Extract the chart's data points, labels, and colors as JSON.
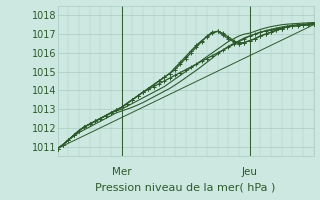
{
  "xlabel": "Pression niveau de la mer( hPa )",
  "bg_color": "#cce8e0",
  "grid_color": "#aaccc4",
  "line_color": "#2d5a2d",
  "ylim": [
    1010.5,
    1018.5
  ],
  "xlim": [
    0,
    96
  ],
  "yticks": [
    1011,
    1012,
    1013,
    1014,
    1015,
    1016,
    1017,
    1018
  ],
  "day_labels": [
    [
      24,
      "Mer"
    ],
    [
      72,
      "Jeu"
    ]
  ],
  "series": [
    {
      "x": [
        0,
        2,
        4,
        6,
        8,
        10,
        12,
        14,
        16,
        18,
        20,
        22,
        24,
        26,
        28,
        30,
        32,
        34,
        36,
        38,
        40,
        42,
        44,
        46,
        48,
        50,
        52,
        54,
        56,
        58,
        60,
        62,
        64,
        66,
        68,
        70,
        72,
        74,
        76,
        78,
        80,
        82,
        84,
        86,
        88,
        90,
        92,
        94,
        96
      ],
      "y": [
        1010.9,
        1011.1,
        1011.35,
        1011.6,
        1011.85,
        1012.05,
        1012.2,
        1012.35,
        1012.5,
        1012.65,
        1012.8,
        1012.95,
        1013.1,
        1013.3,
        1013.5,
        1013.7,
        1013.9,
        1014.05,
        1014.2,
        1014.35,
        1014.5,
        1014.65,
        1014.8,
        1014.95,
        1015.1,
        1015.25,
        1015.4,
        1015.55,
        1015.7,
        1015.85,
        1016.0,
        1016.15,
        1016.3,
        1016.45,
        1016.6,
        1016.75,
        1016.9,
        1017.0,
        1017.1,
        1017.17,
        1017.22,
        1017.28,
        1017.33,
        1017.38,
        1017.42,
        1017.45,
        1017.48,
        1017.5,
        1017.52
      ],
      "marker": true,
      "lw": 0.9
    },
    {
      "x": [
        0,
        2,
        4,
        6,
        8,
        10,
        12,
        14,
        16,
        18,
        20,
        22,
        24,
        26,
        28,
        30,
        32,
        34,
        36,
        38,
        40,
        42,
        44,
        46,
        48,
        50,
        52,
        54,
        56,
        58,
        60,
        62,
        64,
        66,
        68,
        70,
        72,
        74,
        76,
        78,
        80,
        82,
        84,
        86,
        88,
        90,
        92,
        94,
        96
      ],
      "y": [
        1010.9,
        1011.1,
        1011.35,
        1011.6,
        1011.85,
        1012.05,
        1012.2,
        1012.35,
        1012.5,
        1012.65,
        1012.8,
        1012.95,
        1013.1,
        1013.3,
        1013.5,
        1013.7,
        1013.9,
        1014.1,
        1014.3,
        1014.5,
        1014.7,
        1014.9,
        1015.1,
        1015.4,
        1015.7,
        1016.0,
        1016.3,
        1016.6,
        1016.9,
        1017.1,
        1017.15,
        1016.95,
        1016.75,
        1016.6,
        1016.5,
        1016.55,
        1016.65,
        1016.75,
        1016.9,
        1017.0,
        1017.1,
        1017.2,
        1017.3,
        1017.38,
        1017.43,
        1017.47,
        1017.5,
        1017.52,
        1017.54
      ],
      "marker": true,
      "lw": 0.9
    },
    {
      "x": [
        0,
        2,
        4,
        6,
        8,
        10,
        12,
        14,
        16,
        18,
        20,
        22,
        24,
        26,
        28,
        30,
        32,
        34,
        36,
        38,
        40,
        42,
        44,
        46,
        48,
        50,
        52,
        54,
        56,
        58,
        60,
        62,
        64,
        66,
        68,
        70,
        72,
        74,
        76,
        78,
        80,
        82,
        84,
        86,
        88,
        90,
        92,
        94,
        96
      ],
      "y": [
        1010.9,
        1011.1,
        1011.35,
        1011.6,
        1011.85,
        1012.05,
        1012.2,
        1012.35,
        1012.5,
        1012.65,
        1012.8,
        1012.95,
        1013.1,
        1013.3,
        1013.5,
        1013.7,
        1013.9,
        1014.1,
        1014.3,
        1014.5,
        1014.7,
        1014.9,
        1015.2,
        1015.5,
        1015.8,
        1016.1,
        1016.4,
        1016.65,
        1016.85,
        1017.05,
        1017.15,
        1017.05,
        1016.85,
        1016.65,
        1016.5,
        1016.55,
        1016.65,
        1016.75,
        1016.9,
        1017.0,
        1017.1,
        1017.2,
        1017.3,
        1017.38,
        1017.43,
        1017.47,
        1017.5,
        1017.52,
        1017.54
      ],
      "marker": true,
      "lw": 0.9
    },
    {
      "x": [
        0,
        2,
        4,
        6,
        8,
        10,
        12,
        14,
        16,
        18,
        20,
        22,
        24,
        26,
        28,
        30,
        32,
        34,
        36,
        38,
        40,
        42,
        44,
        46,
        48,
        50,
        52,
        54,
        56,
        58,
        60,
        62,
        64,
        66,
        68,
        70,
        72,
        74,
        76,
        78,
        80,
        82,
        84,
        86,
        88,
        90,
        92,
        94,
        96
      ],
      "y": [
        1010.9,
        1011.1,
        1011.35,
        1011.6,
        1011.85,
        1012.05,
        1012.2,
        1012.35,
        1012.5,
        1012.65,
        1012.8,
        1012.9,
        1013.0,
        1013.15,
        1013.3,
        1013.45,
        1013.6,
        1013.75,
        1013.9,
        1014.05,
        1014.2,
        1014.4,
        1014.6,
        1014.8,
        1015.0,
        1015.2,
        1015.4,
        1015.6,
        1015.8,
        1016.0,
        1016.2,
        1016.4,
        1016.6,
        1016.75,
        1016.9,
        1017.0,
        1017.05,
        1017.15,
        1017.25,
        1017.33,
        1017.4,
        1017.45,
        1017.5,
        1017.53,
        1017.55,
        1017.57,
        1017.59,
        1017.6,
        1017.62
      ],
      "marker": false,
      "lw": 0.8
    },
    {
      "x": [
        0,
        2,
        4,
        6,
        8,
        10,
        12,
        14,
        16,
        18,
        20,
        22,
        24,
        26,
        28,
        30,
        32,
        34,
        36,
        38,
        40,
        42,
        44,
        46,
        48,
        50,
        52,
        54,
        56,
        58,
        60,
        62,
        64,
        66,
        68,
        70,
        72,
        74,
        76,
        78,
        80,
        82,
        84,
        86,
        88,
        90,
        92,
        94,
        96
      ],
      "y": [
        1010.9,
        1011.1,
        1011.35,
        1011.55,
        1011.75,
        1011.9,
        1012.05,
        1012.2,
        1012.35,
        1012.5,
        1012.65,
        1012.8,
        1012.9,
        1013.0,
        1013.1,
        1013.22,
        1013.35,
        1013.5,
        1013.65,
        1013.8,
        1013.95,
        1014.1,
        1014.28,
        1014.47,
        1014.67,
        1014.87,
        1015.07,
        1015.28,
        1015.5,
        1015.72,
        1015.95,
        1016.15,
        1016.35,
        1016.5,
        1016.65,
        1016.8,
        1016.9,
        1017.0,
        1017.1,
        1017.18,
        1017.25,
        1017.32,
        1017.38,
        1017.43,
        1017.47,
        1017.5,
        1017.53,
        1017.55,
        1017.57
      ],
      "marker": false,
      "lw": 0.8
    },
    {
      "x": [
        0,
        96
      ],
      "y": [
        1010.9,
        1017.5
      ],
      "marker": false,
      "lw": 0.7
    }
  ],
  "font_size_label": 8,
  "font_size_tick": 7,
  "font_size_day": 7.5
}
